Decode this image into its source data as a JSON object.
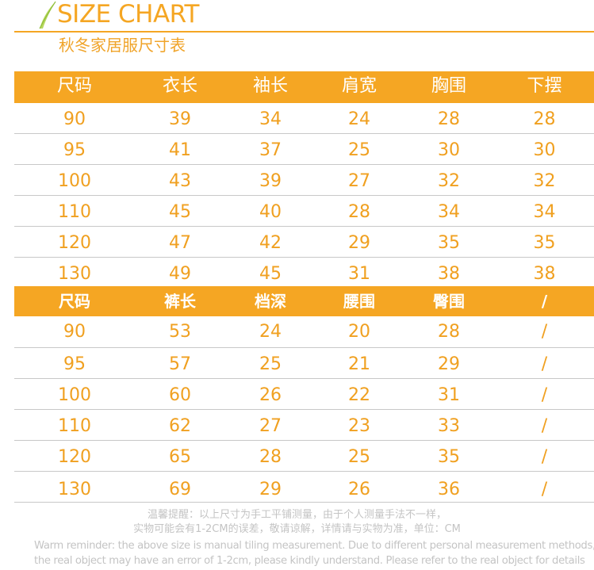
{
  "header": {
    "title": "SIZE CHART",
    "subtitle": "秋冬家居服尺寸表"
  },
  "table_top": {
    "columns": [
      "尺码",
      "衣长",
      "袖长",
      "肩宽",
      "胸围",
      "下摆"
    ],
    "rows": [
      [
        "90",
        "39",
        "34",
        "24",
        "28",
        "28"
      ],
      [
        "95",
        "41",
        "37",
        "25",
        "30",
        "30"
      ],
      [
        "100",
        "43",
        "39",
        "27",
        "32",
        "32"
      ],
      [
        "110",
        "45",
        "40",
        "28",
        "34",
        "34"
      ],
      [
        "120",
        "47",
        "42",
        "29",
        "35",
        "35"
      ],
      [
        "130",
        "49",
        "45",
        "31",
        "38",
        "38"
      ]
    ]
  },
  "table_bottom": {
    "columns": [
      "尺码",
      "裤长",
      "档深",
      "腰围",
      "臀围",
      "/"
    ],
    "rows": [
      [
        "90",
        "53",
        "24",
        "20",
        "28",
        "/"
      ],
      [
        "95",
        "57",
        "25",
        "21",
        "29",
        "/"
      ],
      [
        "100",
        "60",
        "26",
        "22",
        "31",
        "/"
      ],
      [
        "110",
        "62",
        "27",
        "23",
        "33",
        "/"
      ],
      [
        "120",
        "65",
        "28",
        "25",
        "35",
        "/"
      ],
      [
        "130",
        "69",
        "29",
        "26",
        "36",
        "/"
      ]
    ]
  },
  "notes": {
    "cn_line1": "温馨提醒：以上尺寸为手工平铺测量，由于个人测量手法不一样，",
    "cn_line2": "实物可能会有1-2CM的误差，敬请谅解，详情请与实物为准，单位：CM",
    "en_line1": "Warm reminder: the above size is manual tiling measurement. Due to different personal measurement methods,",
    "en_line2": "the real object may have an error of 1-2cm, please kindly understand. Please refer to the real object for details"
  },
  "colors": {
    "accent": "#f5a623",
    "text_orange": "#f0a020",
    "note_gray": "#c4c4c4",
    "divider": "#c8c8c8"
  }
}
